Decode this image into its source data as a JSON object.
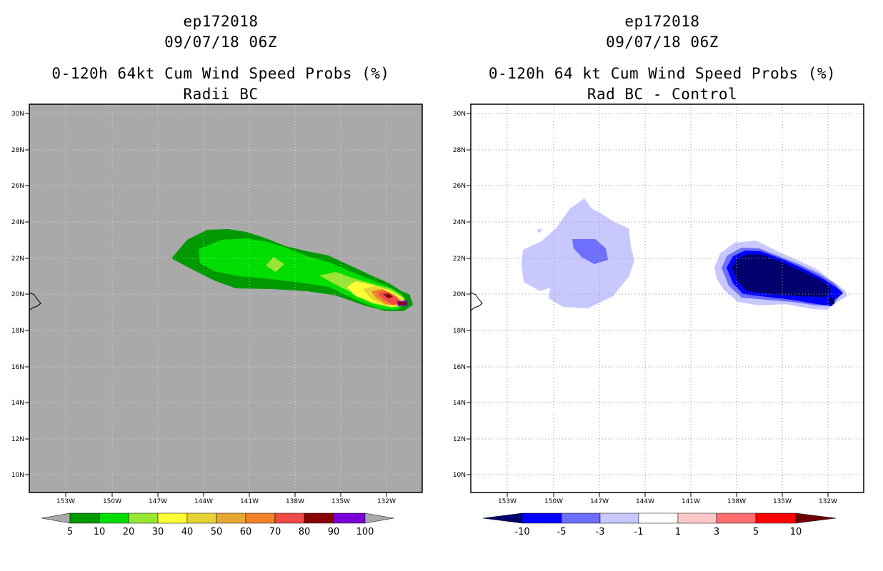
{
  "panels": [
    {
      "storm_id": "ep172018",
      "datetime": "09/07/18 06Z",
      "title": "0-120h 64kt Cum Wind Speed Probs (%)",
      "subtitle": "Radii BC",
      "lat_labels": [
        "30N",
        "28N",
        "26N",
        "24N",
        "22N",
        "20N",
        "18N",
        "16N",
        "14N",
        "12N",
        "10N"
      ],
      "lon_labels": [
        "153W",
        "150W",
        "147W",
        "144W",
        "141W",
        "138W",
        "135W",
        "132W"
      ],
      "colorbar": {
        "labels": [
          "5",
          "10",
          "20",
          "30",
          "40",
          "50",
          "60",
          "70",
          "80",
          "90",
          "100"
        ],
        "colors": [
          "#009900",
          "#00dd00",
          "#99e632",
          "#ffff33",
          "#e6d233",
          "#e6a833",
          "#f08228",
          "#f04a46",
          "#880000",
          "#7a00d8"
        ]
      }
    },
    {
      "storm_id": "ep172018",
      "datetime": "09/07/18 06Z",
      "title": "0-120h 64 kt Cum Wind Speed Probs (%)",
      "subtitle": "Rad BC - Control",
      "lat_labels": [
        "30N",
        "28N",
        "26N",
        "24N",
        "22N",
        "20N",
        "18N",
        "16N",
        "14N",
        "12N",
        "10N"
      ],
      "lon_labels": [
        "153W",
        "150W",
        "147W",
        "144W",
        "141W",
        "138W",
        "135W",
        "132W"
      ],
      "colorbar": {
        "labels": [
          "-10",
          "-5",
          "-3",
          "-1",
          "1",
          "3",
          "5",
          "10"
        ],
        "colors": [
          "#00006e",
          "#0000ff",
          "#6e6eff",
          "#c8c8ff",
          "#ffffff",
          "#ffc8c8",
          "#ff6e6e",
          "#ff0000",
          "#6e0000"
        ]
      }
    }
  ]
}
